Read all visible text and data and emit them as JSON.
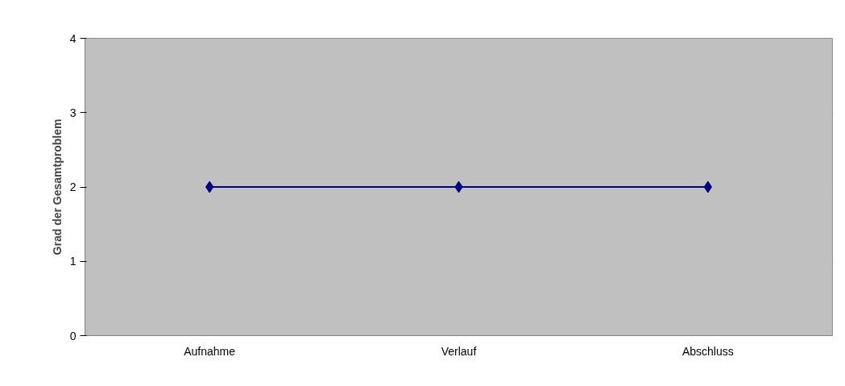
{
  "chart_data": {
    "type": "line",
    "ylabel": "Grad der Gesamtproblem",
    "categories": [
      "Aufnahme",
      "Verlauf",
      "Abschluss"
    ],
    "series": [
      {
        "color": "#000080",
        "values": [
          2,
          2,
          2
        ]
      }
    ],
    "ylim": [
      0,
      4
    ],
    "yticks": [
      0,
      1,
      2,
      3,
      4
    ],
    "grid": "y",
    "marker": "diamond",
    "line_style": "solid"
  }
}
